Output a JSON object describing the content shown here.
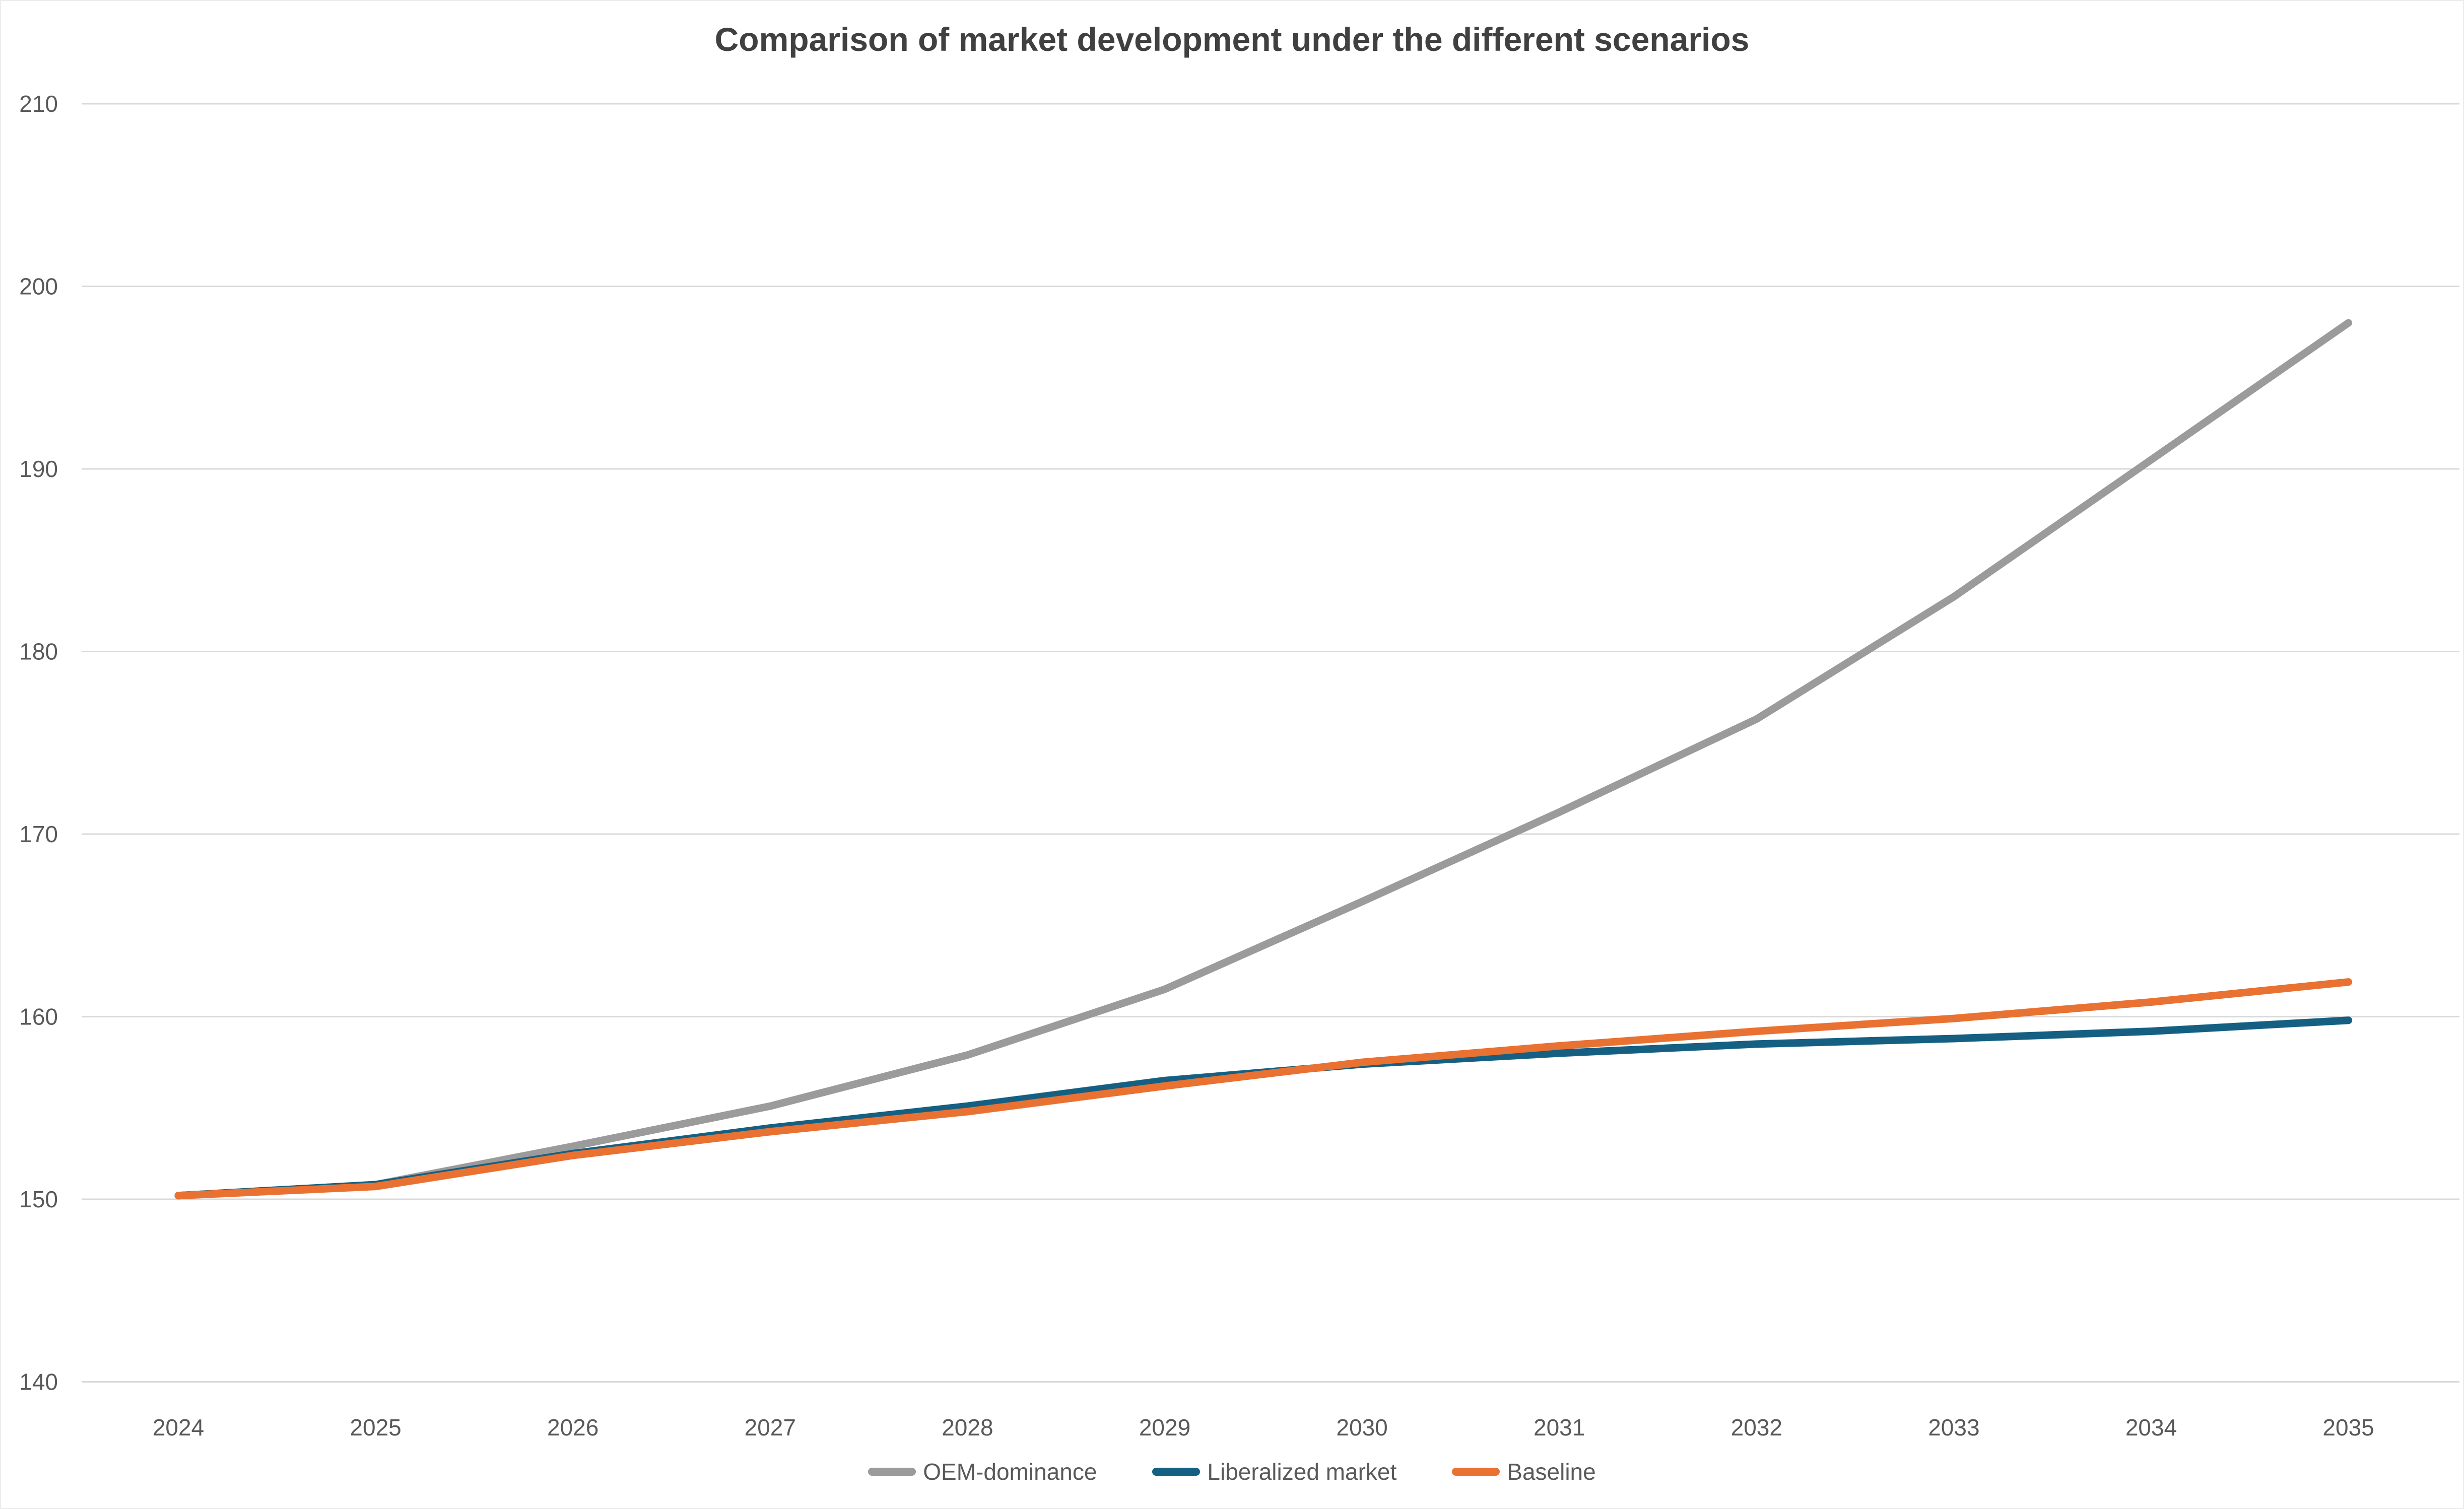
{
  "title": "Comparison of market development under the different scenarios",
  "chart_data": {
    "type": "line",
    "title": "Comparison of market development under the different scenarios",
    "categories": [
      2024,
      2025,
      2026,
      2027,
      2028,
      2029,
      2030,
      2031,
      2032,
      2033,
      2034,
      2035
    ],
    "series": [
      {
        "name": "OEM-dominance",
        "color": "#9B9B9B",
        "values": [
          150.2,
          150.8,
          152.9,
          155.1,
          157.9,
          161.5,
          166.3,
          171.2,
          176.3,
          183.0,
          190.5,
          198.0
        ]
      },
      {
        "name": "Liberalized market",
        "color": "#156082",
        "values": [
          150.2,
          150.8,
          152.5,
          153.9,
          155.1,
          156.5,
          157.4,
          158.0,
          158.5,
          158.8,
          159.2,
          159.8
        ]
      },
      {
        "name": "Baseline",
        "color": "#E97132",
        "values": [
          150.2,
          150.7,
          152.4,
          153.7,
          154.8,
          156.2,
          157.5,
          158.4,
          159.2,
          159.9,
          160.8,
          161.9
        ]
      }
    ],
    "xlabel": "",
    "ylabel": "",
    "ylim": [
      140,
      210
    ],
    "y_ticks": [
      140,
      150,
      160,
      170,
      180,
      190,
      200,
      210
    ],
    "grid": true,
    "legend_position": "bottom",
    "gridline_color": "#D9D9D9",
    "tick_label_color": "#595959",
    "title_color": "#404040",
    "background_color": "#FFFFFF"
  }
}
